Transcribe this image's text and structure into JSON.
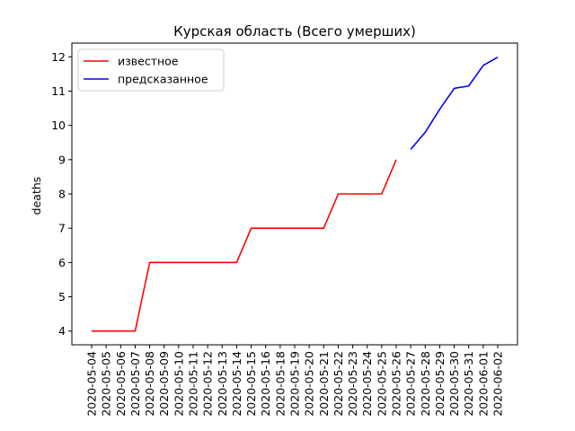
{
  "chart_data": {
    "type": "line",
    "title": "Курская область (Всего умерших)",
    "xlabel": "",
    "ylabel": "deaths",
    "ylim": [
      3.6,
      12.4
    ],
    "yticks": [
      4,
      5,
      6,
      7,
      8,
      9,
      10,
      11,
      12
    ],
    "grid": false,
    "legend_position": "top-left",
    "categories": [
      "2020-05-04",
      "2020-05-05",
      "2020-05-06",
      "2020-05-07",
      "2020-05-08",
      "2020-05-09",
      "2020-05-10",
      "2020-05-11",
      "2020-05-12",
      "2020-05-13",
      "2020-05-14",
      "2020-05-15",
      "2020-05-16",
      "2020-05-18",
      "2020-05-19",
      "2020-05-20",
      "2020-05-21",
      "2020-05-22",
      "2020-05-23",
      "2020-05-24",
      "2020-05-25",
      "2020-05-26",
      "2020-05-27",
      "2020-05-28",
      "2020-05-29",
      "2020-05-30",
      "2020-05-31",
      "2020-06-01",
      "2020-06-02"
    ],
    "series": [
      {
        "name": "известное",
        "color": "#ff0000",
        "values": [
          4,
          4,
          4,
          4,
          6,
          6,
          6,
          6,
          6,
          6,
          6,
          7,
          7,
          7,
          7,
          7,
          7,
          8,
          8,
          8,
          8,
          9,
          null,
          null,
          null,
          null,
          null,
          null,
          null
        ]
      },
      {
        "name": "предсказанное",
        "color": "#0000ff",
        "values": [
          null,
          null,
          null,
          null,
          null,
          null,
          null,
          null,
          null,
          null,
          null,
          null,
          null,
          null,
          null,
          null,
          null,
          null,
          null,
          null,
          null,
          null,
          9.3,
          9.8,
          10.47,
          11.08,
          11.15,
          11.75,
          11.99
        ]
      }
    ]
  }
}
